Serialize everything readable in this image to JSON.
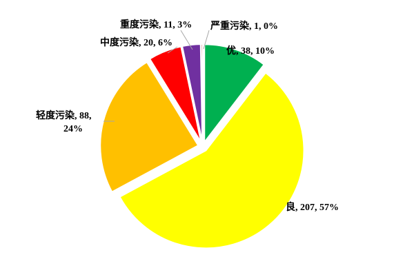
{
  "chart_data": {
    "type": "pie",
    "title": "",
    "slices": [
      {
        "category": "优",
        "value": 38,
        "percent": "10%",
        "color": "#00B050",
        "label_text": "优, 38, 10%"
      },
      {
        "category": "良",
        "value": 207,
        "percent": "57%",
        "color": "#FFFF00",
        "label_text": "良, 207, 57%"
      },
      {
        "category": "轻度污染",
        "value": 88,
        "percent": "24%",
        "color": "#FFC000",
        "label_line1": "轻度污染, 88,",
        "label_line2": "24%"
      },
      {
        "category": "中度污染",
        "value": 20,
        "percent": "6%",
        "color": "#FF0000",
        "label_text": "中度污染, 20, 6%"
      },
      {
        "category": "重度污染",
        "value": 11,
        "percent": "3%",
        "color": "#7030A0",
        "label_text": "重度污染, 11, 3%"
      },
      {
        "category": "严重污染",
        "value": 1,
        "percent": "0%",
        "color": "#C0504D",
        "label_text": "严重污染, 1, 0%"
      }
    ]
  }
}
